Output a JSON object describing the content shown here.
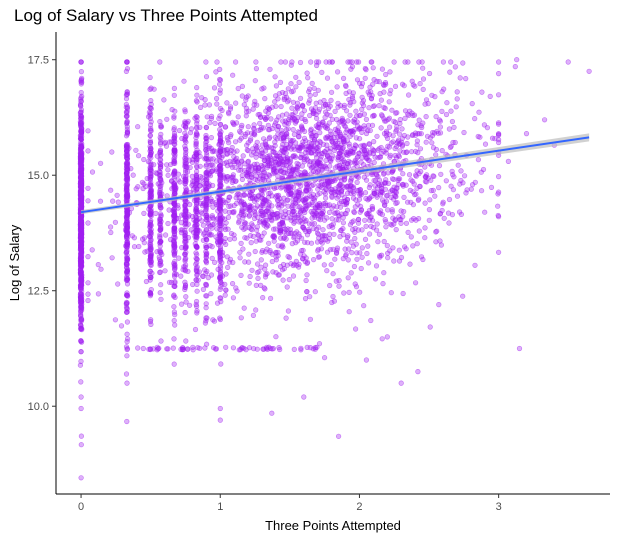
{
  "chart_data": {
    "type": "scatter",
    "title": "Log of Salary vs Three Points Attempted",
    "xlabel": "Three Points Attempted",
    "ylabel": "Log of Salary",
    "xlim": [
      -0.18,
      3.8
    ],
    "ylim": [
      8.1,
      18.1
    ],
    "x_ticks": [
      0,
      1,
      2,
      3
    ],
    "x_tick_labels": [
      "0",
      "1",
      "2",
      "3"
    ],
    "y_ticks": [
      10.0,
      12.5,
      15.0,
      17.5
    ],
    "y_tick_labels": [
      "10.0",
      "12.5",
      "15.0",
      "17.5"
    ],
    "grid": false,
    "point_color": "#a020f0",
    "point_alpha": 0.35,
    "trend_line": {
      "method": "linear",
      "color": "#3366ff",
      "band_color": "#bdbdbd",
      "x": [
        0,
        3.65
      ],
      "y": [
        14.2,
        15.82
      ]
    },
    "points_summary": {
      "approx_count": 6500,
      "x_min": 0,
      "x_max": 3.65,
      "y_min": 8.45,
      "y_max": 17.5,
      "note_columns_at_x": [
        0,
        0.33,
        0.5,
        0.57,
        0.67,
        0.75,
        0.83,
        1.0
      ]
    },
    "points": [
      {
        "x": 0,
        "y": 8.45
      },
      {
        "x": 0,
        "y": 9.95
      },
      {
        "x": 0,
        "y": 10.2
      },
      {
        "x": 0,
        "y": 17.05
      },
      {
        "x": 1.0,
        "y": 9.7
      },
      {
        "x": 1.0,
        "y": 9.95
      },
      {
        "x": 0.33,
        "y": 10.5
      },
      {
        "x": 1.37,
        "y": 9.85
      },
      {
        "x": 1.6,
        "y": 10.2
      },
      {
        "x": 2.3,
        "y": 10.5
      },
      {
        "x": 2.42,
        "y": 10.75
      },
      {
        "x": 2.57,
        "y": 12.2
      },
      {
        "x": 3.15,
        "y": 11.25
      },
      {
        "x": 2.83,
        "y": 13.05
      },
      {
        "x": 2.9,
        "y": 14.2
      },
      {
        "x": 3.0,
        "y": 17.2
      },
      {
        "x": 3.12,
        "y": 17.35
      },
      {
        "x": 3.13,
        "y": 17.5
      },
      {
        "x": 3.5,
        "y": 17.45
      },
      {
        "x": 3.65,
        "y": 17.25
      },
      {
        "x": 3.2,
        "y": 15.9
      },
      {
        "x": 3.07,
        "y": 15.3
      },
      {
        "x": 3.33,
        "y": 16.2
      },
      {
        "x": 2.88,
        "y": 16.8
      },
      {
        "x": 1.85,
        "y": 9.35
      },
      {
        "x": 2.05,
        "y": 11.0
      },
      {
        "x": 2.2,
        "y": 11.5
      },
      {
        "x": 1.75,
        "y": 11.05
      },
      {
        "x": 2.45,
        "y": 17.45
      },
      {
        "x": 1.95,
        "y": 17.35
      },
      {
        "x": 3.4,
        "y": 15.65
      }
    ]
  }
}
